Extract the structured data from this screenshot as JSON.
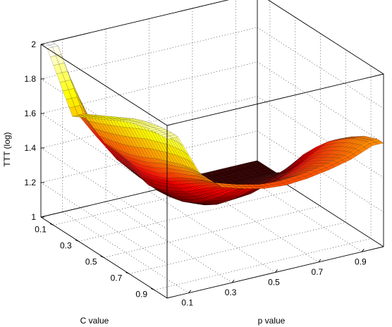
{
  "chart_data": {
    "type": "surface3d",
    "title": "",
    "xlabel": "p value",
    "ylabel": "C value",
    "zlabel": "TTT (log)",
    "x_ticks": [
      "0.1",
      "0.3",
      "0.5",
      "0.7",
      "0.9"
    ],
    "y_ticks": [
      "0.1",
      "0.3",
      "0.5",
      "0.7",
      "0.9"
    ],
    "z_ticks": [
      "1",
      "1.2",
      "1.4",
      "1.6",
      "1.8",
      "2"
    ],
    "x_values": [
      0.05,
      0.15,
      0.25,
      0.35,
      0.45,
      0.55,
      0.65,
      0.75,
      0.85,
      0.95
    ],
    "y_values": [
      0.05,
      0.15,
      0.25,
      0.35,
      0.45,
      0.55,
      0.65,
      0.75,
      0.85,
      0.95
    ],
    "z_rows_by_C": [
      [
        2.0,
        1.58,
        1.4,
        1.23,
        1.1,
        1.05,
        1.04,
        1.03,
        1.03,
        1.03
      ],
      [
        1.85,
        1.56,
        1.39,
        1.22,
        1.09,
        1.04,
        1.03,
        1.03,
        1.03,
        1.03
      ],
      [
        1.7,
        1.5,
        1.37,
        1.2,
        1.1,
        1.05,
        1.04,
        1.05,
        1.06,
        1.08
      ],
      [
        1.74,
        1.51,
        1.36,
        1.22,
        1.12,
        1.07,
        1.07,
        1.09,
        1.12,
        1.18
      ],
      [
        1.78,
        1.53,
        1.38,
        1.26,
        1.16,
        1.12,
        1.13,
        1.16,
        1.21,
        1.29
      ],
      [
        1.82,
        1.56,
        1.41,
        1.3,
        1.22,
        1.19,
        1.2,
        1.24,
        1.3,
        1.38
      ],
      [
        1.86,
        1.6,
        1.46,
        1.36,
        1.29,
        1.27,
        1.29,
        1.33,
        1.39,
        1.46
      ],
      [
        1.89,
        1.63,
        1.5,
        1.42,
        1.37,
        1.36,
        1.37,
        1.41,
        1.46,
        1.52
      ],
      [
        1.91,
        1.66,
        1.54,
        1.48,
        1.44,
        1.43,
        1.44,
        1.47,
        1.51,
        1.57
      ],
      [
        1.92,
        1.68,
        1.57,
        1.53,
        1.5,
        1.49,
        1.5,
        1.52,
        1.55,
        1.6
      ]
    ],
    "xlim": [
      0,
      1
    ],
    "ylim": [
      0,
      1
    ],
    "zlim": [
      1,
      2
    ],
    "colormap": "hot",
    "grid": true
  }
}
